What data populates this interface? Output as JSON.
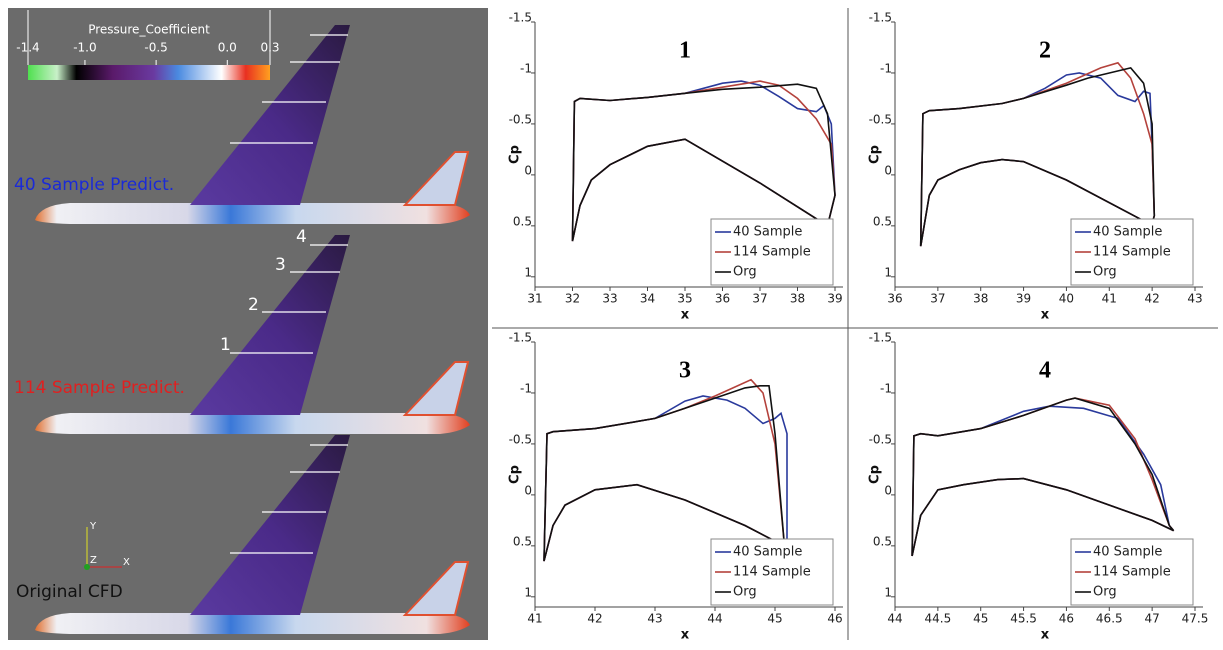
{
  "left_panel": {
    "colorbar": {
      "title": "Pressure_Coefficient",
      "ticks": [
        -1.4,
        {
          "value": -1,
          "label": "-1.0"
        },
        -0.5,
        {
          "value": 0,
          "label": "0.0"
        },
        0.3
      ]
    },
    "labels": [
      "40 Sample Predict.",
      "114 Sample Predict.",
      "Original CFD"
    ],
    "section_labels": [
      "1",
      "2",
      "3",
      "4"
    ],
    "axes": [
      "Y",
      "Z",
      "X"
    ]
  },
  "chart_data": [
    {
      "type": "line",
      "title": "1",
      "xlabel": "x",
      "ylabel": "Cp",
      "xlim": [
        31,
        39
      ],
      "xticks": [
        31,
        32,
        33,
        34,
        35,
        36,
        37,
        38,
        39
      ],
      "ylim": [
        -1.5,
        1.1
      ],
      "yticks": [
        -1.5,
        -1,
        -0.5,
        0,
        0.5,
        1
      ],
      "y_inverted": true,
      "legend": "lower right",
      "series": [
        {
          "name": "40 Sample",
          "color": "#2a3a9c",
          "x": [
            32.0,
            32.05,
            32.2,
            33,
            34,
            35,
            36,
            36.5,
            37,
            37.5,
            38,
            38.5,
            38.7,
            38.9,
            39,
            38.8,
            37,
            35,
            34,
            33,
            32.5,
            32.2,
            32.0
          ],
          "values": [
            0.65,
            -0.72,
            -0.75,
            -0.73,
            -0.76,
            -0.8,
            -0.9,
            -0.92,
            -0.88,
            -0.77,
            -0.65,
            -0.62,
            -0.68,
            -0.5,
            0.2,
            0.5,
            0.08,
            -0.35,
            -0.28,
            -0.1,
            0.05,
            0.3,
            0.65
          ]
        },
        {
          "name": "114 Sample",
          "color": "#b4423c",
          "x": [
            32.0,
            32.05,
            32.2,
            33,
            34,
            35,
            36,
            37,
            37.5,
            38,
            38.5,
            38.9,
            39,
            38.8,
            37,
            35,
            34,
            33,
            32.5,
            32.2,
            32.0
          ],
          "values": [
            0.65,
            -0.72,
            -0.75,
            -0.73,
            -0.76,
            -0.8,
            -0.86,
            -0.92,
            -0.88,
            -0.75,
            -0.55,
            -0.3,
            0.2,
            0.5,
            0.08,
            -0.35,
            -0.28,
            -0.1,
            0.05,
            0.3,
            0.65
          ]
        },
        {
          "name": "Org",
          "color": "#111111",
          "x": [
            32.0,
            32.05,
            32.2,
            33,
            34,
            35,
            36,
            37,
            38,
            38.5,
            38.8,
            39,
            38.8,
            37,
            35,
            34,
            33,
            32.5,
            32.2,
            32.0
          ],
          "values": [
            0.65,
            -0.72,
            -0.75,
            -0.73,
            -0.76,
            -0.8,
            -0.84,
            -0.86,
            -0.89,
            -0.85,
            -0.6,
            0.2,
            0.5,
            0.08,
            -0.35,
            -0.28,
            -0.1,
            0.05,
            0.3,
            0.65
          ]
        }
      ]
    },
    {
      "type": "line",
      "title": "2",
      "xlabel": "x",
      "ylabel": "Cp",
      "xlim": [
        36,
        43
      ],
      "xticks": [
        36,
        37,
        38,
        39,
        40,
        41,
        42,
        43
      ],
      "ylim": [
        -1.5,
        1.1
      ],
      "yticks": [
        -1.5,
        -1,
        -0.5,
        0,
        0.5,
        1
      ],
      "y_inverted": true,
      "legend": "lower right",
      "series": [
        {
          "name": "40 Sample",
          "color": "#2a3a9c",
          "x": [
            36.6,
            36.65,
            36.8,
            37.5,
            38.5,
            39,
            39.5,
            40,
            40.3,
            40.8,
            41.2,
            41.6,
            41.8,
            41.95,
            42,
            42.05,
            42,
            41.8,
            40,
            39,
            38.5,
            38,
            37.5,
            37,
            36.8,
            36.6
          ],
          "values": [
            0.7,
            -0.6,
            -0.63,
            -0.65,
            -0.7,
            -0.75,
            -0.85,
            -0.98,
            -1.0,
            -0.95,
            -0.78,
            -0.72,
            -0.82,
            -0.8,
            -0.3,
            0.4,
            0.48,
            0.45,
            0.05,
            -0.13,
            -0.15,
            -0.12,
            -0.05,
            0.05,
            0.2,
            0.7
          ]
        },
        {
          "name": "114 Sample",
          "color": "#b4423c",
          "x": [
            36.6,
            36.65,
            36.8,
            37.5,
            38.5,
            39,
            40,
            40.8,
            41.2,
            41.5,
            41.8,
            42,
            42.05,
            42,
            41.8,
            40,
            39,
            38.5,
            38,
            37.5,
            37,
            36.8,
            36.6
          ],
          "values": [
            0.7,
            -0.6,
            -0.63,
            -0.65,
            -0.7,
            -0.75,
            -0.9,
            -1.05,
            -1.1,
            -0.95,
            -0.6,
            -0.3,
            0.4,
            0.48,
            0.45,
            0.05,
            -0.13,
            -0.15,
            -0.12,
            -0.05,
            0.05,
            0.2,
            0.7
          ]
        },
        {
          "name": "Org",
          "color": "#111111",
          "x": [
            36.6,
            36.65,
            36.8,
            37.5,
            38.5,
            39,
            40,
            40.5,
            41,
            41.5,
            41.8,
            42,
            42.05,
            42,
            41.8,
            40,
            39,
            38.5,
            38,
            37.5,
            37,
            36.8,
            36.6
          ],
          "values": [
            0.7,
            -0.6,
            -0.63,
            -0.65,
            -0.7,
            -0.75,
            -0.88,
            -0.95,
            -1.0,
            -1.05,
            -0.9,
            -0.5,
            0.4,
            0.48,
            0.45,
            0.05,
            -0.13,
            -0.15,
            -0.12,
            -0.05,
            0.05,
            0.2,
            0.7
          ]
        }
      ]
    },
    {
      "type": "line",
      "title": "3",
      "xlabel": "x",
      "ylabel": "Cp",
      "xlim": [
        41,
        46
      ],
      "xticks": [
        41,
        42,
        43,
        44,
        45,
        46
      ],
      "ylim": [
        -1.5,
        1.1
      ],
      "yticks": [
        -1.5,
        -1,
        -0.5,
        0,
        0.5,
        1
      ],
      "y_inverted": true,
      "legend": "lower right",
      "series": [
        {
          "name": "40 Sample",
          "color": "#2a3a9c",
          "x": [
            41.15,
            41.2,
            41.3,
            42,
            43,
            43.5,
            43.8,
            44.2,
            44.5,
            44.8,
            45,
            45.1,
            45.2,
            45.2,
            45.15,
            44.5,
            43.5,
            42.7,
            42,
            41.5,
            41.3,
            41.15
          ],
          "values": [
            0.65,
            -0.6,
            -0.62,
            -0.65,
            -0.75,
            -0.92,
            -0.97,
            -0.93,
            -0.85,
            -0.7,
            -0.75,
            -0.8,
            -0.6,
            0.45,
            0.5,
            0.3,
            0.05,
            -0.1,
            -0.05,
            0.1,
            0.3,
            0.65
          ]
        },
        {
          "name": "114 Sample",
          "color": "#b4423c",
          "x": [
            41.15,
            41.2,
            41.3,
            42,
            43,
            43.5,
            44,
            44.3,
            44.6,
            44.8,
            45,
            45.15,
            45.15,
            44.5,
            43.5,
            42.7,
            42,
            41.5,
            41.3,
            41.15
          ],
          "values": [
            0.65,
            -0.6,
            -0.62,
            -0.65,
            -0.75,
            -0.85,
            -0.97,
            -1.05,
            -1.13,
            -1.0,
            -0.5,
            0.45,
            0.5,
            0.3,
            0.05,
            -0.1,
            -0.05,
            0.1,
            0.3,
            0.65
          ]
        },
        {
          "name": "Org",
          "color": "#111111",
          "x": [
            41.15,
            41.2,
            41.3,
            42,
            43,
            43.5,
            44,
            44.5,
            44.75,
            44.9,
            45,
            45.15,
            45.15,
            44.5,
            43.5,
            42.7,
            42,
            41.5,
            41.3,
            41.15
          ],
          "values": [
            0.65,
            -0.6,
            -0.62,
            -0.65,
            -0.75,
            -0.85,
            -0.95,
            -1.05,
            -1.07,
            -1.07,
            -0.6,
            0.45,
            0.5,
            0.3,
            0.05,
            -0.1,
            -0.05,
            0.1,
            0.3,
            0.65
          ]
        }
      ]
    },
    {
      "type": "line",
      "title": "4",
      "xlabel": "x",
      "ylabel": "Cp",
      "xlim": [
        44,
        47.5
      ],
      "xticks": [
        44,
        44.5,
        45,
        45.5,
        46,
        46.5,
        47,
        47.5
      ],
      "ylim": [
        -1.5,
        1.1
      ],
      "yticks": [
        -1.5,
        -1,
        -0.5,
        0,
        0.5,
        1
      ],
      "y_inverted": true,
      "legend": "lower right",
      "series": [
        {
          "name": "40 Sample",
          "color": "#2a3a9c",
          "x": [
            44.2,
            44.22,
            44.3,
            44.5,
            45,
            45.5,
            45.8,
            46.2,
            46.6,
            46.9,
            47.1,
            47.2,
            47.25,
            47,
            46,
            45.5,
            45.2,
            44.8,
            44.5,
            44.3,
            44.2
          ],
          "values": [
            0.6,
            -0.58,
            -0.6,
            -0.58,
            -0.65,
            -0.82,
            -0.87,
            -0.85,
            -0.75,
            -0.4,
            -0.1,
            0.3,
            0.35,
            0.25,
            -0.05,
            -0.16,
            -0.15,
            -0.1,
            -0.05,
            0.2,
            0.6
          ]
        },
        {
          "name": "114 Sample",
          "color": "#b4423c",
          "x": [
            44.2,
            44.22,
            44.3,
            44.5,
            45,
            45.5,
            46,
            46.1,
            46.5,
            46.8,
            47,
            47.2,
            47.25,
            47,
            46,
            45.5,
            45.2,
            44.8,
            44.5,
            44.3,
            44.2
          ],
          "values": [
            0.6,
            -0.58,
            -0.6,
            -0.58,
            -0.65,
            -0.78,
            -0.93,
            -0.95,
            -0.88,
            -0.55,
            -0.15,
            0.3,
            0.35,
            0.25,
            -0.05,
            -0.16,
            -0.15,
            -0.1,
            -0.05,
            0.2,
            0.6
          ]
        },
        {
          "name": "Org",
          "color": "#111111",
          "x": [
            44.2,
            44.22,
            44.3,
            44.5,
            45,
            45.5,
            46,
            46.1,
            46.5,
            46.8,
            47,
            47.2,
            47.25,
            47,
            46,
            45.5,
            45.2,
            44.8,
            44.5,
            44.3,
            44.2
          ],
          "values": [
            0.6,
            -0.58,
            -0.6,
            -0.58,
            -0.65,
            -0.78,
            -0.93,
            -0.95,
            -0.85,
            -0.5,
            -0.2,
            0.3,
            0.35,
            0.25,
            -0.05,
            -0.16,
            -0.15,
            -0.1,
            -0.05,
            0.2,
            0.6
          ]
        }
      ]
    }
  ]
}
